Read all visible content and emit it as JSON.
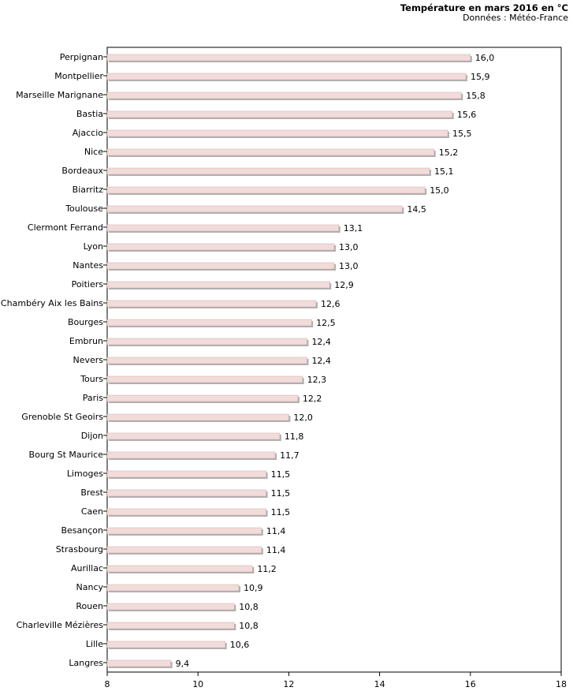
{
  "chart_data": {
    "type": "bar",
    "orientation": "horizontal",
    "title": "Température en mars 2016 en °C",
    "subtitle": "Données : Météo-France",
    "categories": [
      "Perpignan",
      "Montpellier",
      "Marseille Marignane",
      "Bastia",
      "Ajaccio",
      "Nice",
      "Bordeaux",
      "Biarritz",
      "Toulouse",
      "Clermont Ferrand",
      "Lyon",
      "Nantes",
      "Poitiers",
      "Chambéry Aix les Bains",
      "Bourges",
      "Embrun",
      "Nevers",
      "Tours",
      "Paris",
      "Grenoble St Geoirs",
      "Dijon",
      "Bourg St Maurice",
      "Limoges",
      "Brest",
      "Caen",
      "Besançon",
      "Strasbourg",
      "Aurillac",
      "Nancy",
      "Rouen",
      "Charleville Mézières",
      "Lille",
      "Langres"
    ],
    "values": [
      16.0,
      15.9,
      15.8,
      15.6,
      15.5,
      15.2,
      15.1,
      15.0,
      14.5,
      13.1,
      13.0,
      13.0,
      12.9,
      12.6,
      12.5,
      12.4,
      12.4,
      12.3,
      12.2,
      12.0,
      11.8,
      11.7,
      11.5,
      11.5,
      11.5,
      11.4,
      11.4,
      11.2,
      10.9,
      10.8,
      10.8,
      10.6,
      9.4
    ],
    "value_labels": [
      "16,0",
      "15,9",
      "15,8",
      "15,6",
      "15,5",
      "15,2",
      "15,1",
      "15,0",
      "14,5",
      "13,1",
      "13,0",
      "13,0",
      "12,9",
      "12,6",
      "12,5",
      "12,4",
      "12,4",
      "12,3",
      "12,2",
      "12,0",
      "11,8",
      "11,7",
      "11,5",
      "11,5",
      "11,5",
      "11,4",
      "11,4",
      "11,2",
      "10,9",
      "10,8",
      "10,8",
      "10,6",
      "9,4"
    ],
    "xlim": [
      8,
      18
    ],
    "xticks": [
      "8",
      "10",
      "12",
      "14",
      "16",
      "18"
    ],
    "grid": false,
    "bar_color": "#f2dcdb",
    "bar_shadow_color": "#b0b0b0"
  }
}
